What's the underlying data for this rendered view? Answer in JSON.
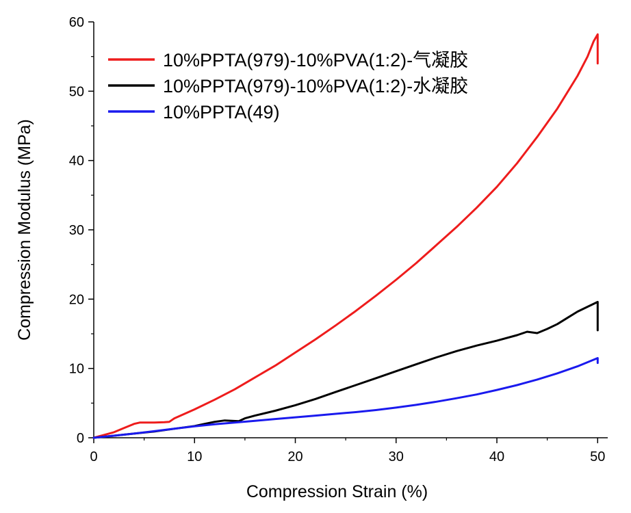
{
  "chart_data": {
    "type": "line",
    "title": "",
    "xlabel": "Compression Strain (%)",
    "ylabel": "Compression Modulus (MPa)",
    "xlim": [
      0,
      51
    ],
    "ylim": [
      0,
      60
    ],
    "xticks": [
      0,
      10,
      20,
      30,
      40,
      50
    ],
    "yticks": [
      0,
      10,
      20,
      30,
      40,
      50,
      60
    ],
    "grid": false,
    "legend_position": "top-left",
    "series": [
      {
        "name": "10%PPTA(979)-10%PVA(1:2)-气凝胶",
        "color": "#ee1c1c",
        "points": [
          [
            0,
            0
          ],
          [
            2,
            0.8
          ],
          [
            3,
            1.4
          ],
          [
            4,
            2.0
          ],
          [
            4.6,
            2.2
          ],
          [
            6,
            2.2
          ],
          [
            7,
            2.25
          ],
          [
            7.5,
            2.3
          ],
          [
            8,
            2.8
          ],
          [
            10,
            4.1
          ],
          [
            12,
            5.5
          ],
          [
            14,
            7.0
          ],
          [
            16,
            8.7
          ],
          [
            18,
            10.4
          ],
          [
            20,
            12.3
          ],
          [
            22,
            14.2
          ],
          [
            24,
            16.2
          ],
          [
            26,
            18.3
          ],
          [
            28,
            20.5
          ],
          [
            30,
            22.8
          ],
          [
            32,
            25.2
          ],
          [
            34,
            27.8
          ],
          [
            36,
            30.4
          ],
          [
            38,
            33.2
          ],
          [
            40,
            36.2
          ],
          [
            42,
            39.6
          ],
          [
            44,
            43.4
          ],
          [
            46,
            47.5
          ],
          [
            48,
            52.2
          ],
          [
            49,
            55.0
          ],
          [
            49.6,
            57.2
          ],
          [
            50,
            58.2
          ],
          [
            50,
            54.0
          ]
        ]
      },
      {
        "name": "10%PPTA(979)-10%PVA(1:2)-水凝胶",
        "color": "#000000",
        "points": [
          [
            0,
            0
          ],
          [
            2,
            0.3
          ],
          [
            4,
            0.6
          ],
          [
            6,
            0.9
          ],
          [
            8,
            1.3
          ],
          [
            10,
            1.7
          ],
          [
            11,
            2.0
          ],
          [
            12,
            2.3
          ],
          [
            13,
            2.5
          ],
          [
            14.4,
            2.4
          ],
          [
            15,
            2.8
          ],
          [
            16,
            3.2
          ],
          [
            18,
            3.9
          ],
          [
            20,
            4.7
          ],
          [
            22,
            5.6
          ],
          [
            24,
            6.6
          ],
          [
            26,
            7.6
          ],
          [
            28,
            8.6
          ],
          [
            30,
            9.6
          ],
          [
            32,
            10.6
          ],
          [
            34,
            11.6
          ],
          [
            36,
            12.5
          ],
          [
            38,
            13.3
          ],
          [
            40,
            14.0
          ],
          [
            42,
            14.8
          ],
          [
            43,
            15.3
          ],
          [
            44,
            15.1
          ],
          [
            45,
            15.7
          ],
          [
            46,
            16.4
          ],
          [
            47,
            17.3
          ],
          [
            48,
            18.2
          ],
          [
            49,
            18.9
          ],
          [
            50,
            19.6
          ],
          [
            50,
            15.5
          ]
        ]
      },
      {
        "name": "10%PPTA(49)",
        "color": "#1a1aee",
        "points": [
          [
            0,
            0
          ],
          [
            2,
            0.3
          ],
          [
            4,
            0.6
          ],
          [
            6,
            0.95
          ],
          [
            8,
            1.3
          ],
          [
            10,
            1.65
          ],
          [
            12,
            1.95
          ],
          [
            14,
            2.2
          ],
          [
            16,
            2.45
          ],
          [
            18,
            2.7
          ],
          [
            20,
            2.95
          ],
          [
            22,
            3.2
          ],
          [
            24,
            3.45
          ],
          [
            26,
            3.7
          ],
          [
            28,
            4.0
          ],
          [
            30,
            4.35
          ],
          [
            32,
            4.75
          ],
          [
            34,
            5.2
          ],
          [
            36,
            5.7
          ],
          [
            38,
            6.25
          ],
          [
            40,
            6.9
          ],
          [
            42,
            7.6
          ],
          [
            44,
            8.4
          ],
          [
            46,
            9.3
          ],
          [
            48,
            10.3
          ],
          [
            50,
            11.5
          ],
          [
            50,
            10.8
          ]
        ]
      }
    ]
  }
}
